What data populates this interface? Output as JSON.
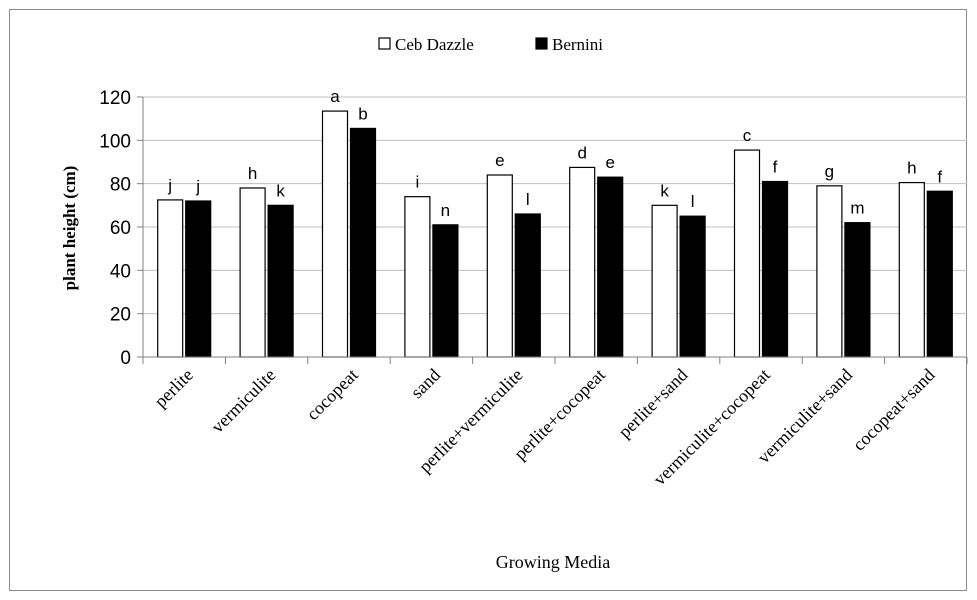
{
  "chart_data": {
    "type": "bar",
    "title": "",
    "xlabel": "Growing Media",
    "ylabel": "plant height  (cm)",
    "ylim": [
      0,
      120
    ],
    "yticks": [
      0,
      20,
      40,
      60,
      80,
      100,
      120
    ],
    "grid": true,
    "legend_position": "top-center",
    "categories": [
      "perlite",
      "vermiculite",
      "cocopeat",
      "sand",
      "perlite+vermiculite",
      "perlite+cocopeat",
      "perlite+sand",
      "vermiculite+cocopeat",
      "vermiculite+sand",
      "cocopeat+sand"
    ],
    "series": [
      {
        "name": "Ceb Dazzle",
        "color": "#ffffff",
        "values": [
          72.5,
          78,
          113.5,
          74,
          84,
          87.5,
          70,
          95.5,
          79,
          80.5
        ],
        "labels": [
          "j",
          "h",
          "a",
          "i",
          "e",
          "d",
          "k",
          "c",
          "g",
          "h"
        ]
      },
      {
        "name": "Bernini",
        "color": "#000000",
        "values": [
          72,
          70,
          105.5,
          61,
          66,
          83,
          65,
          81,
          62,
          76.5
        ],
        "labels": [
          "j",
          "k",
          "b",
          "n",
          "l",
          "e",
          "l",
          "f",
          "m",
          "f"
        ]
      }
    ]
  }
}
